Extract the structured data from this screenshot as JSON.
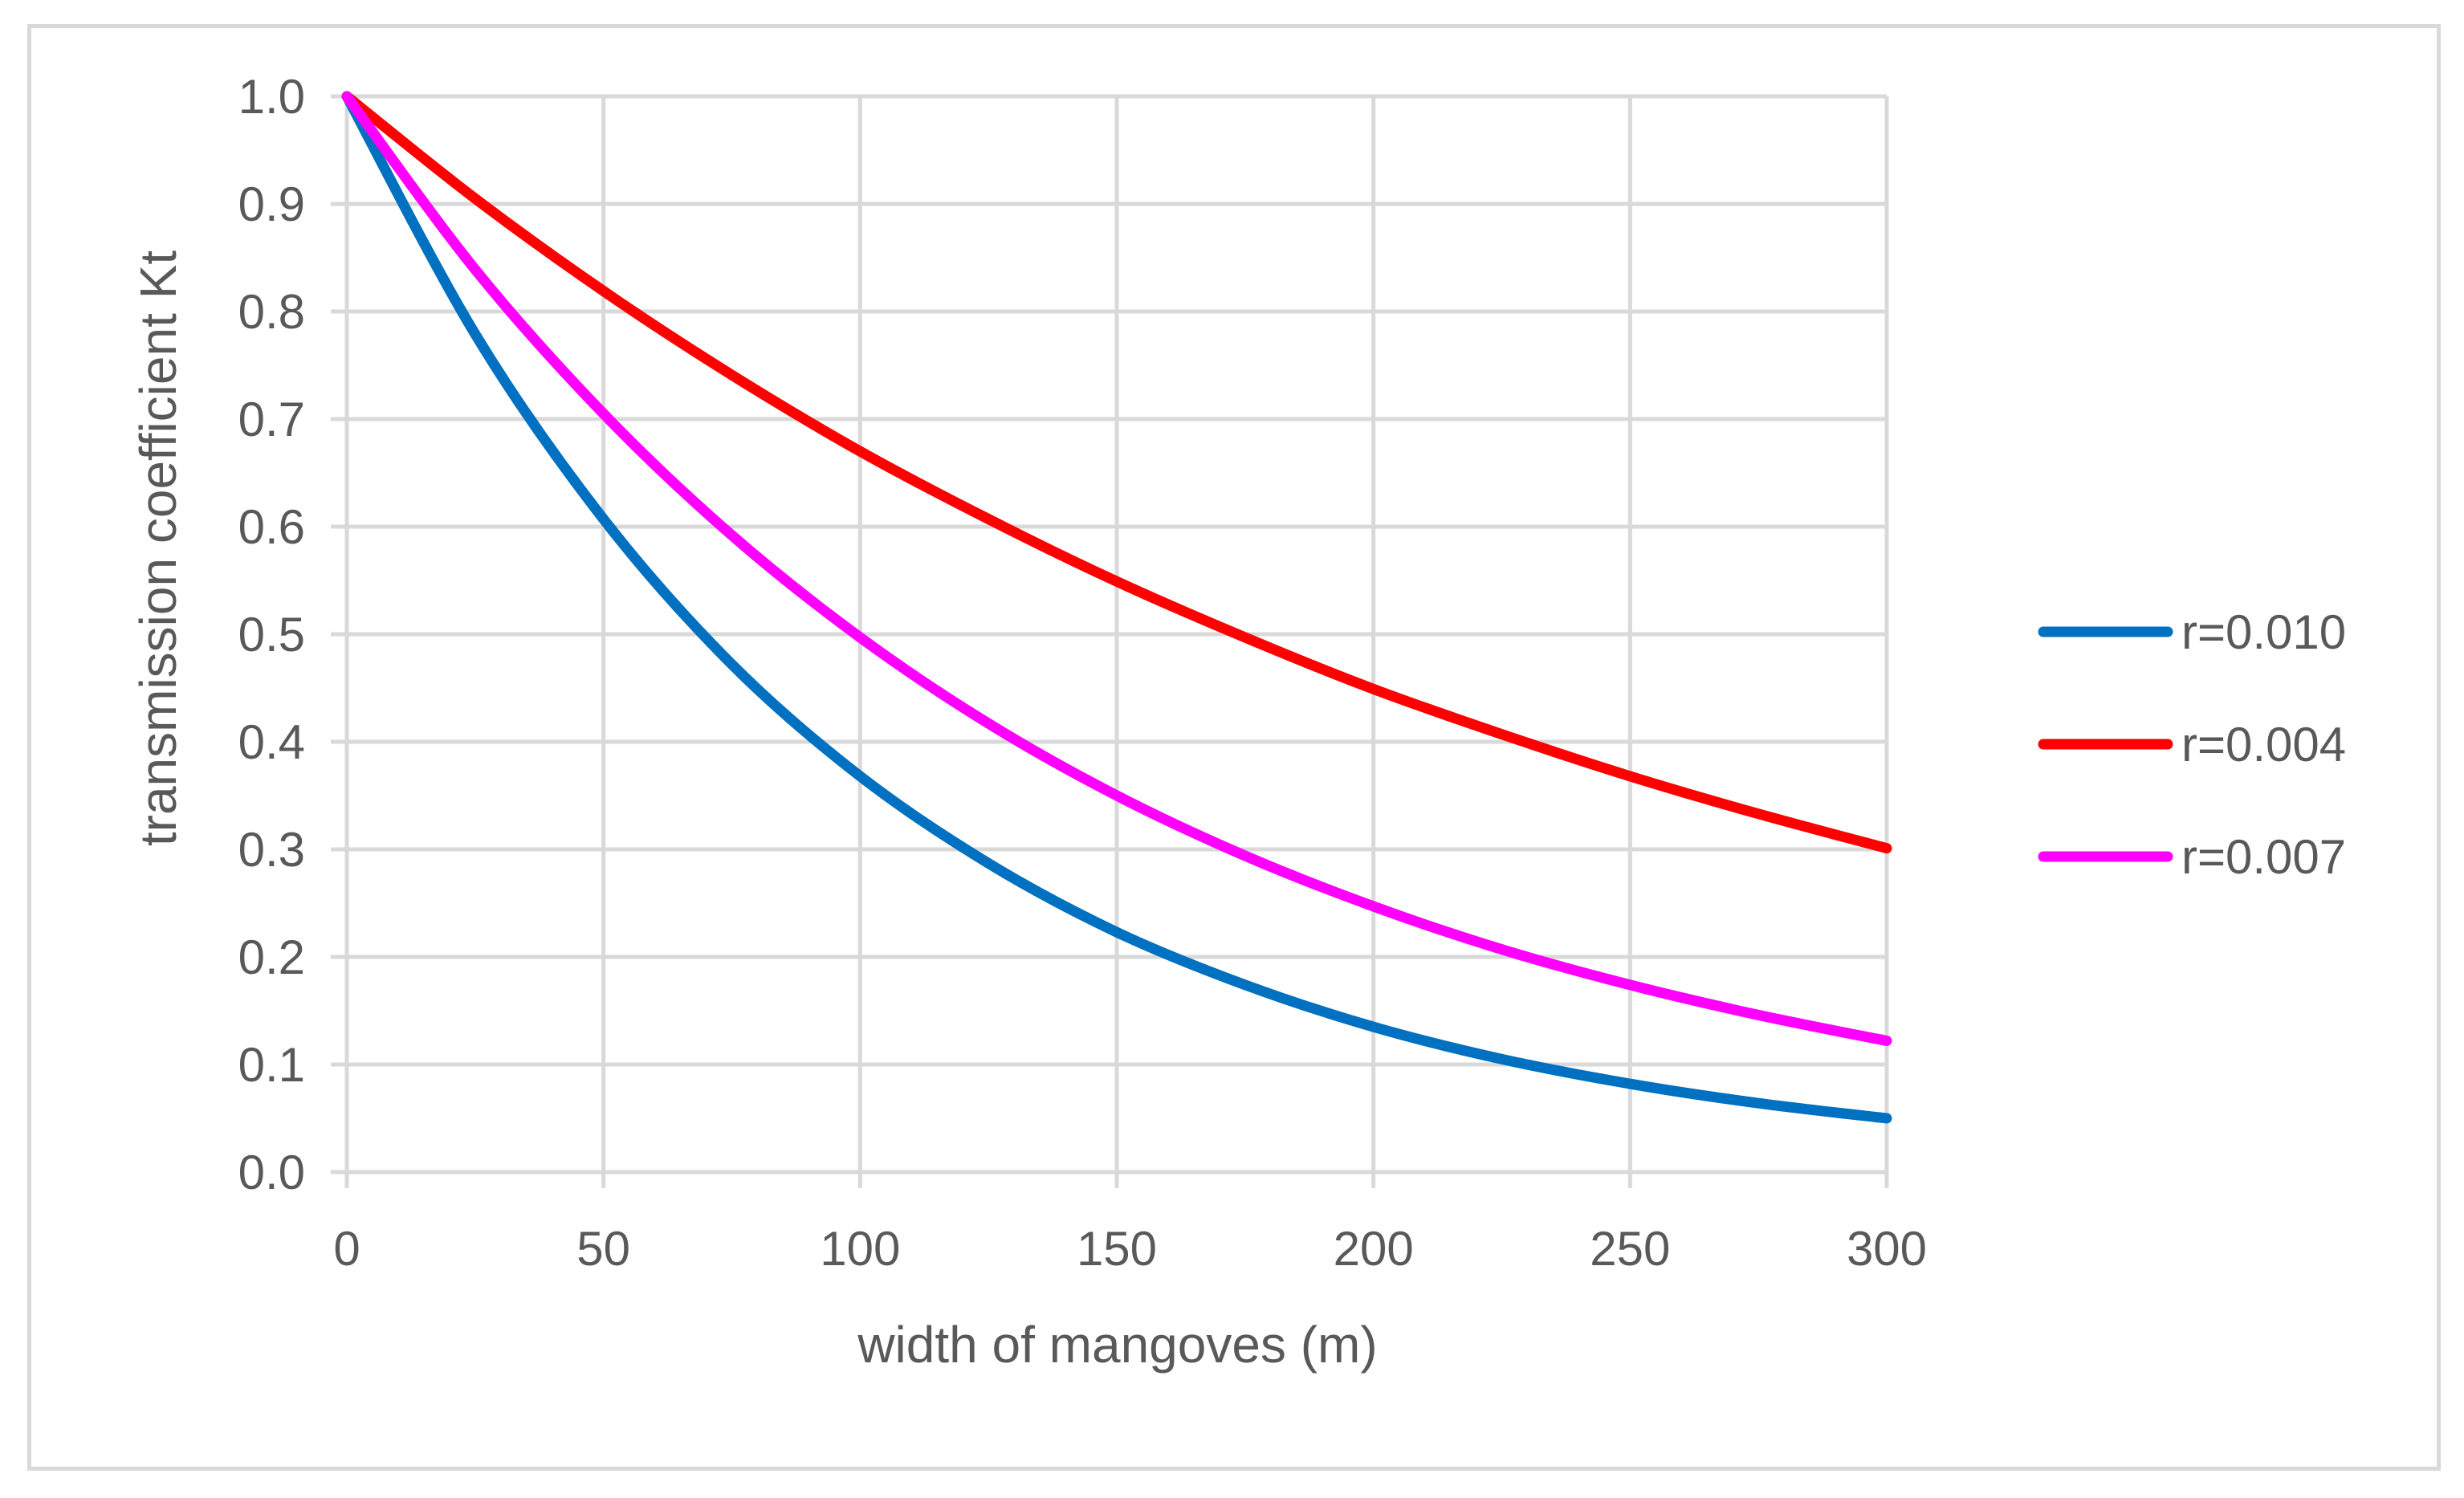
{
  "chart_data": {
    "type": "line",
    "title": "",
    "xlabel": "width of mangoves (m)",
    "ylabel": "transmission coefficient  Kt",
    "xlim": [
      0,
      300
    ],
    "ylim": [
      0.0,
      1.0
    ],
    "xticks": [
      0,
      50,
      100,
      150,
      200,
      250,
      300
    ],
    "xtick_labels": [
      "0",
      "50",
      "100",
      "150",
      "200",
      "250",
      "300"
    ],
    "yticks": [
      0.0,
      0.1,
      0.2,
      0.3,
      0.4,
      0.5,
      0.6,
      0.7,
      0.8,
      0.9,
      1.0
    ],
    "ytick_labels": [
      "0.0",
      "0.1",
      "0.2",
      "0.3",
      "0.4",
      "0.5",
      "0.6",
      "0.7",
      "0.8",
      "0.9",
      "1.0"
    ],
    "grid": true,
    "legend_position": "right",
    "x": [
      0,
      25,
      50,
      75,
      100,
      125,
      150,
      175,
      200,
      225,
      250,
      275,
      300
    ],
    "series": [
      {
        "name": "r=0.010",
        "color": "#0070c0",
        "values": [
          1.0,
          0.779,
          0.607,
          0.472,
          0.368,
          0.287,
          0.223,
          0.174,
          0.135,
          0.105,
          0.082,
          0.064,
          0.05
        ]
      },
      {
        "name": "r=0.004",
        "color": "#ff0000",
        "values": [
          1.0,
          0.905,
          0.819,
          0.741,
          0.67,
          0.607,
          0.549,
          0.497,
          0.449,
          0.407,
          0.368,
          0.333,
          0.301
        ]
      },
      {
        "name": "r=0.007",
        "color": "#ff00ff",
        "values": [
          1.0,
          0.839,
          0.705,
          0.592,
          0.497,
          0.417,
          0.35,
          0.294,
          0.247,
          0.207,
          0.174,
          0.146,
          0.122
        ]
      }
    ]
  }
}
